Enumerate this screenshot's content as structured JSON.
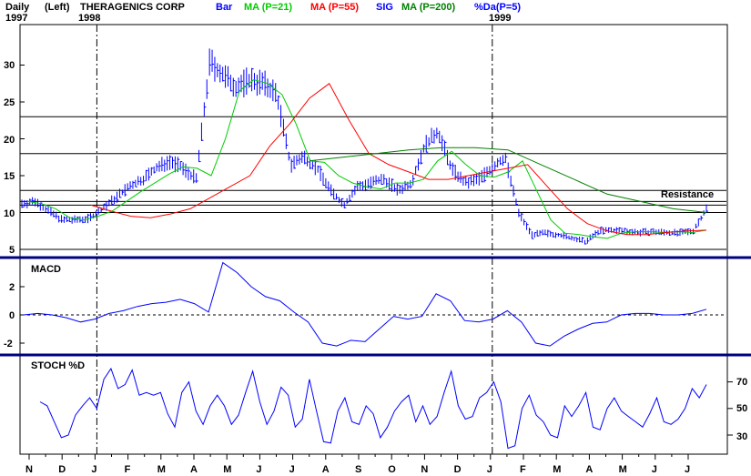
{
  "header": {
    "period": "Daily",
    "axis_side": "(Left)",
    "title": "THERAGENICS CORP",
    "legend": [
      {
        "label": "Bar",
        "color": "#0000ff"
      },
      {
        "label": "MA (P=21)",
        "color": "#00cc00"
      },
      {
        "label": "MA (P=55)",
        "color": "#ff0000"
      },
      {
        "label": "SIG",
        "color": "#0000ff"
      },
      {
        "label": "MA (P=200)",
        "color": "#008000"
      },
      {
        "label": "%Da(P=5)",
        "color": "#0000ff"
      }
    ],
    "years": [
      "1997",
      "1998",
      "1999"
    ]
  },
  "colors": {
    "price_bar": "#0000ff",
    "ma21": "#00cc00",
    "ma55": "#ff0000",
    "ma200": "#008000",
    "macd": "#0000ff",
    "stoch": "#0000ff",
    "separator": "#000080"
  },
  "chart_data": [
    {
      "type": "line",
      "panel": "price",
      "title": "THERAGENICS CORP",
      "x_labels": [
        "N",
        "D",
        "J",
        "F",
        "M",
        "A",
        "M",
        "J",
        "J",
        "A",
        "S",
        "O",
        "N",
        "D",
        "J",
        "F",
        "M",
        "A",
        "M",
        "J",
        "J"
      ],
      "year_markers": [
        {
          "label": "1998",
          "month_index": 2
        },
        {
          "label": "1999",
          "month_index": 14
        }
      ],
      "y_ticks": [
        5,
        10,
        15,
        20,
        25,
        30
      ],
      "ylim": [
        4,
        35
      ],
      "annotation": "Resistance",
      "horizontal_levels": [
        5,
        10,
        11,
        11.5,
        13,
        18,
        23
      ],
      "series": [
        {
          "name": "Bar",
          "style": "ohlc",
          "values": [
            11.2,
            11.5,
            10.2,
            9.0,
            9.0,
            9.2,
            10.5,
            12.0,
            13.5,
            14.5,
            16.0,
            17.0,
            16.0,
            14.5,
            30.5,
            28.5,
            27.0,
            28.0,
            27.5,
            26.0,
            16.5,
            17.5,
            16.0,
            13.0,
            11.0,
            13.5,
            14.0,
            14.5,
            13.0,
            14.0,
            19.0,
            21.0,
            16.0,
            14.0,
            14.5,
            16.0,
            17.5,
            10.0,
            7.0,
            7.2,
            7.0,
            6.5,
            6.0,
            7.5,
            7.6,
            7.5,
            7.3,
            7.4,
            7.3,
            7.2,
            7.5,
            10.5
          ]
        },
        {
          "name": "MA (P=21)",
          "values": [
            11.5,
            11.2,
            10.5,
            9.3,
            9.0,
            9.5,
            10.2,
            11.5,
            12.8,
            14.0,
            15.2,
            16.2,
            16.0,
            15.0,
            20.0,
            26.5,
            28.0,
            27.5,
            26.0,
            22.0,
            17.0,
            16.8,
            15.0,
            14.0,
            13.5,
            13.2,
            14.0,
            14.0,
            14.5,
            17.0,
            18.3,
            16.5,
            15.0,
            14.8,
            15.5,
            17.0,
            13.0,
            9.0,
            7.2,
            7.0,
            6.7,
            6.5,
            7.2,
            7.4,
            7.4,
            7.3,
            7.4,
            7.3,
            7.6
          ]
        },
        {
          "name": "MA (P=55)",
          "values": [
            11.0,
            10.2,
            9.5,
            9.3,
            9.8,
            10.5,
            12.0,
            13.5,
            15.0,
            19.0,
            22.0,
            25.5,
            27.5,
            22.5,
            18.0,
            16.5,
            15.5,
            14.5,
            14.5,
            15.0,
            15.5,
            16.0,
            16.5,
            13.5,
            10.5,
            8.5,
            7.5,
            7.0,
            7.0,
            7.3,
            7.5,
            7.6
          ]
        },
        {
          "name": "MA (P=200)",
          "values": [
            17.0,
            17.5,
            18.0,
            18.5,
            18.8,
            18.8,
            18.5,
            16.5,
            14.5,
            12.5,
            11.5,
            10.5,
            10.0
          ]
        }
      ]
    },
    {
      "type": "line",
      "panel": "macd",
      "title": "MACD",
      "y_ticks": [
        -2,
        0,
        2
      ],
      "ylim": [
        -2.8,
        3.8
      ],
      "series": [
        {
          "name": "MACD",
          "values": [
            0.0,
            0.1,
            0.0,
            -0.2,
            -0.5,
            -0.3,
            0.1,
            0.3,
            0.6,
            0.8,
            0.9,
            1.1,
            0.8,
            0.2,
            3.7,
            3.0,
            2.0,
            1.3,
            1.0,
            0.2,
            -0.5,
            -2.0,
            -2.2,
            -1.8,
            -1.9,
            -1.0,
            -0.1,
            -0.3,
            -0.1,
            1.5,
            1.0,
            -0.4,
            -0.5,
            -0.3,
            0.3,
            -0.5,
            -2.0,
            -2.2,
            -1.5,
            -1.0,
            -0.6,
            -0.5,
            0.0,
            0.1,
            0.1,
            0.0,
            0.0,
            0.1,
            0.4
          ]
        }
      ]
    },
    {
      "type": "line",
      "panel": "stochastic",
      "title": "STOCH %D",
      "y_ticks": [
        30,
        50,
        70
      ],
      "ylim": [
        17,
        87
      ],
      "series": [
        {
          "name": "STOCH %D",
          "values": [
            55,
            52,
            40,
            28,
            30,
            45,
            52,
            58,
            50,
            72,
            80,
            65,
            68,
            79,
            60,
            62,
            60,
            62,
            46,
            36,
            62,
            70,
            48,
            38,
            52,
            60,
            52,
            38,
            45,
            62,
            78,
            55,
            38,
            48,
            66,
            60,
            36,
            42,
            72,
            48,
            25,
            24,
            48,
            58,
            40,
            38,
            52,
            46,
            28,
            36,
            48,
            55,
            60,
            40,
            52,
            38,
            44,
            62,
            78,
            52,
            42,
            44,
            58,
            62,
            70,
            55,
            20,
            22,
            50,
            60,
            45,
            40,
            30,
            28,
            52,
            44,
            52,
            62,
            36,
            34,
            50,
            58,
            48,
            44,
            40,
            36,
            46,
            58,
            40,
            38,
            42,
            50,
            65,
            58,
            68
          ]
        }
      ]
    }
  ]
}
